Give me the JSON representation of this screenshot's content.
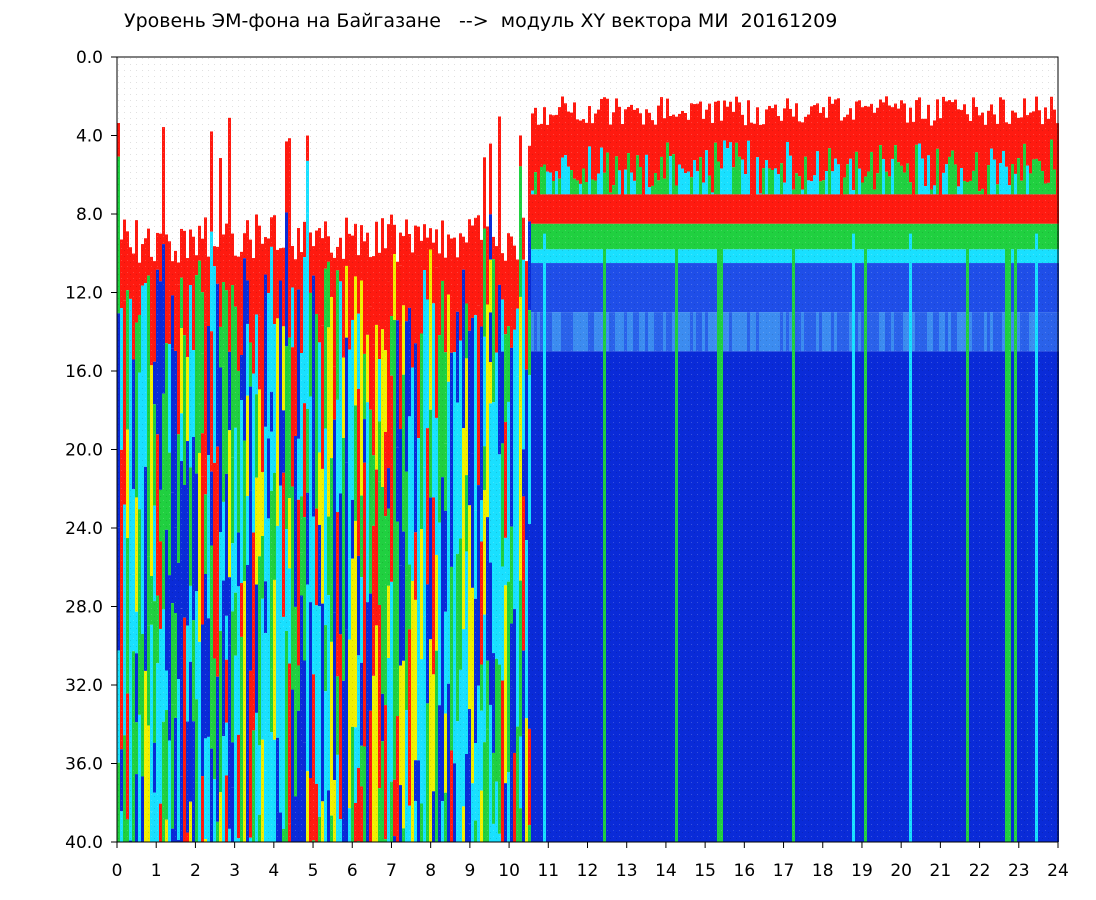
{
  "chart_data": {
    "type": "heatmap",
    "title": "Уровень ЭМ-фона на Байгазане   -->  модуль XY вектора МИ  20161209",
    "xlabel": "",
    "ylabel": "",
    "xlim": [
      0,
      24
    ],
    "ylim": [
      0,
      40
    ],
    "y_inverted": true,
    "x_ticks": [
      "0",
      "1",
      "2",
      "3",
      "4",
      "5",
      "6",
      "7",
      "8",
      "9",
      "10",
      "11",
      "12",
      "13",
      "14",
      "15",
      "16",
      "17",
      "18",
      "19",
      "20",
      "21",
      "22",
      "23",
      "24"
    ],
    "y_ticks": [
      "0.0",
      "4.0",
      "8.0",
      "12.0",
      "16.0",
      "20.0",
      "24.0",
      "28.0",
      "32.0",
      "36.0",
      "40.0"
    ],
    "grid": false,
    "colors": {
      "low": "#0a2bd8",
      "cyan": "#19e0ff",
      "green": "#20d040",
      "yellow": "#f0f000",
      "high": "#ff1a10"
    },
    "regions": [
      {
        "x_range": [
          0,
          10.5
        ],
        "signal_top": 8.5,
        "dominant": "mixed broadband bands (blue/cyan/green/yellow/red)"
      },
      {
        "x_range": [
          10.5,
          24
        ],
        "signal_top": 2.5,
        "dominant": "red/green/cyan above 9, deep blue below"
      }
    ]
  }
}
